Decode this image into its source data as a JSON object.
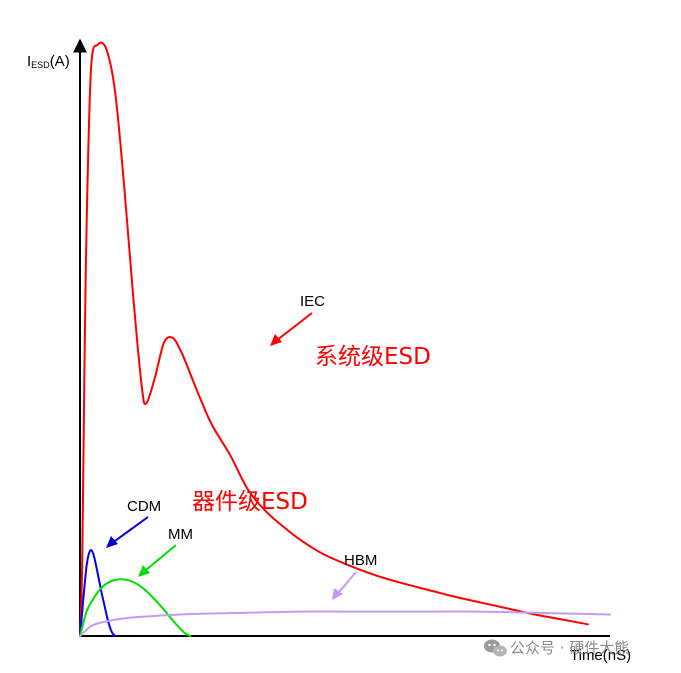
{
  "chart_data": {
    "type": "line",
    "xlabel": "Time(nS)",
    "ylabel_main": "I",
    "ylabel_sub": "ESD",
    "ylabel_unit": "(A)",
    "series": [
      {
        "name": "IEC",
        "color": "#ff0000",
        "x": [
          0,
          1,
          2,
          3,
          5,
          8,
          12,
          16,
          20,
          24,
          28,
          30,
          34,
          38,
          42,
          46,
          50,
          55,
          60,
          68,
          76,
          84,
          92,
          100,
          110,
          122,
          134,
          146,
          158,
          170,
          182,
          194,
          206,
          218,
          230
        ],
        "y": [
          0,
          75,
          270,
          420,
          580,
          605,
          600,
          555,
          460,
          350,
          255,
          238,
          265,
          300,
          305,
          290,
          268,
          240,
          215,
          185,
          150,
          128,
          112,
          98,
          84,
          72,
          62,
          54,
          47,
          40,
          34,
          28,
          22,
          17,
          12
        ]
      },
      {
        "name": "CDM",
        "color": "#0000ff",
        "x": [
          0,
          1,
          2,
          3,
          4,
          5,
          6,
          7,
          8,
          9,
          10,
          11,
          12,
          13,
          14,
          15,
          16
        ],
        "y": [
          0,
          25,
          50,
          72,
          84,
          88,
          84,
          75,
          64,
          53,
          42,
          32,
          22,
          13,
          6,
          2,
          0
        ]
      },
      {
        "name": "MM",
        "color": "#00dd00",
        "x": [
          0,
          3,
          6,
          10,
          14,
          18,
          22,
          26,
          30,
          34,
          38,
          42,
          46,
          48,
          50
        ],
        "y": [
          0,
          25,
          38,
          50,
          56,
          58,
          57,
          53,
          46,
          37,
          27,
          16,
          6,
          2,
          0
        ]
      },
      {
        "name": "HBM",
        "color": "#c39bf0",
        "x": [
          0,
          5,
          10,
          20,
          30,
          45,
          60,
          80,
          100,
          120,
          140,
          160,
          180,
          200,
          220,
          240
        ],
        "y": [
          0,
          10,
          14,
          18,
          20,
          22,
          23,
          24,
          25,
          25,
          25,
          25,
          25,
          24,
          23,
          22
        ]
      }
    ],
    "annotations": {
      "iec": "IEC",
      "cdm": "CDM",
      "mm": "MM",
      "hbm": "HBM",
      "system_level": "系统级ESD",
      "device_level": "器件级ESD"
    },
    "xlim": [
      0,
      240
    ],
    "ylim": [
      0,
      620
    ],
    "grid": false
  },
  "watermark": {
    "icon": "wechat-icon",
    "text": "公众号 · 硬件大熊"
  },
  "colors": {
    "annotation_red": "#ff0000",
    "axis": "#000000"
  }
}
